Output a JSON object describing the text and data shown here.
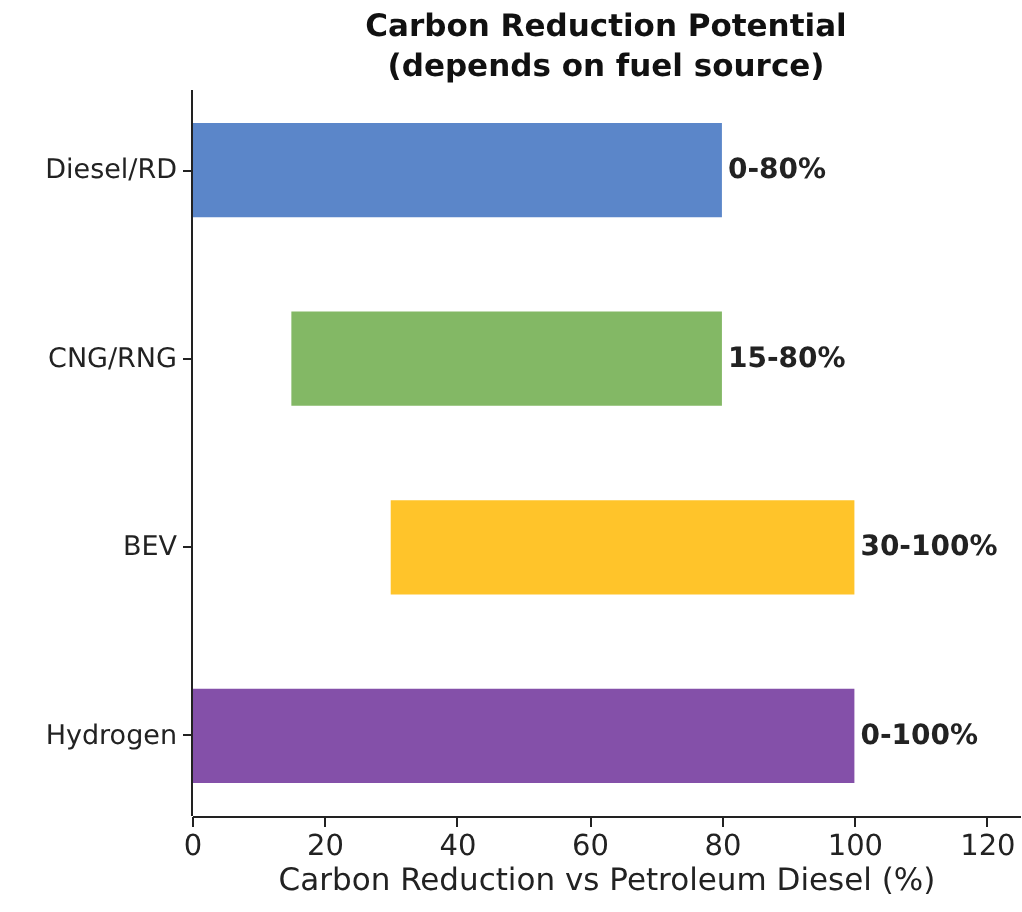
{
  "chart_data": {
    "type": "bar",
    "orientation": "horizontal",
    "title": "Carbon Reduction Potential\n(depends on fuel source)",
    "categories": [
      "Diesel/RD",
      "CNG/RNG",
      "BEV",
      "Hydrogen"
    ],
    "base": [
      0,
      15,
      30,
      0
    ],
    "values": [
      80,
      65,
      70,
      100
    ],
    "colors": [
      "#5b86c9",
      "#83b865",
      "#ffc42a",
      "#8450a9"
    ],
    "annotations": [
      "0-80%",
      "15-80%",
      "30-100%",
      "0-100%"
    ],
    "xlabel": "Carbon Reduction vs Petroleum Diesel (%)",
    "xlim": [
      0,
      125
    ],
    "xticks": [
      0,
      20,
      40,
      60,
      80,
      100,
      120
    ]
  }
}
